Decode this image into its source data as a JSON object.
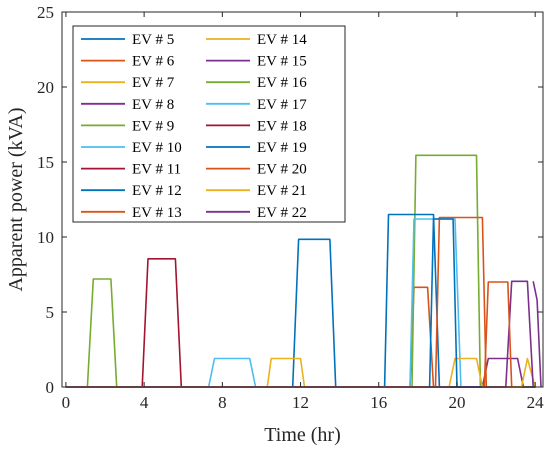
{
  "chart_data": {
    "type": "line",
    "xlabel": "Time (hr)",
    "ylabel": "Apparent power (kVA)",
    "xlim": [
      -0.2,
      24.4
    ],
    "ylim": [
      0,
      25
    ],
    "x_ticks": [
      0,
      4,
      8,
      12,
      16,
      20,
      24
    ],
    "y_ticks": [
      0,
      5,
      10,
      15,
      20,
      25
    ],
    "grid": false,
    "legend_placement": "top-left",
    "series": [
      {
        "name": "EV # 5",
        "color": "#0072BD",
        "x": [
          0,
          24
        ],
        "y": [
          0,
          0
        ]
      },
      {
        "name": "EV # 6",
        "color": "#D95319",
        "x": [
          0,
          24
        ],
        "y": [
          0,
          0
        ]
      },
      {
        "name": "EV # 7",
        "color": "#EDB120",
        "x": [
          0,
          24
        ],
        "y": [
          0,
          0
        ]
      },
      {
        "name": "EV # 8",
        "color": "#7E2F8E",
        "x": [
          0,
          24
        ],
        "y": [
          0,
          0
        ]
      },
      {
        "name": "EV # 9",
        "color": "#77AC30",
        "x": [
          0,
          1.1,
          1.4,
          2.3,
          2.6,
          24
        ],
        "y": [
          0,
          0,
          7.2,
          7.2,
          0,
          0
        ]
      },
      {
        "name": "EV # 10",
        "color": "#4DBEEE",
        "x": [
          0,
          7.3,
          7.6,
          9.4,
          9.7,
          24
        ],
        "y": [
          0,
          0,
          1.9,
          1.9,
          0,
          0
        ]
      },
      {
        "name": "EV # 11",
        "color": "#A2142F",
        "x": [
          0,
          3.9,
          4.2,
          5.6,
          5.9,
          24
        ],
        "y": [
          0,
          0,
          8.55,
          8.55,
          0,
          0
        ]
      },
      {
        "name": "EV # 12",
        "color": "#0072BD",
        "x": [
          0,
          11.6,
          11.9,
          13.5,
          13.8,
          24
        ],
        "y": [
          0,
          0,
          9.85,
          9.85,
          0,
          0
        ]
      },
      {
        "name": "EV # 13",
        "color": "#D95319",
        "x": [
          0,
          17.6,
          17.8,
          18.5,
          18.8,
          24
        ],
        "y": [
          0,
          0,
          6.65,
          6.65,
          0,
          0
        ]
      },
      {
        "name": "EV # 14",
        "color": "#EDB120",
        "x": [
          0,
          10.3,
          10.5,
          12,
          12.2,
          24
        ],
        "y": [
          0,
          0,
          1.9,
          1.9,
          0,
          0
        ]
      },
      {
        "name": "EV # 15",
        "color": "#7E2F8E",
        "x": [
          0,
          21.3,
          21.6,
          23.1,
          23.4,
          24
        ],
        "y": [
          0,
          0,
          1.9,
          1.9,
          0,
          0
        ]
      },
      {
        "name": "EV # 16",
        "color": "#77AC30",
        "x": [
          0,
          17.7,
          17.9,
          21,
          21.2,
          24
        ],
        "y": [
          0,
          0,
          15.45,
          15.45,
          0,
          0
        ]
      },
      {
        "name": "EV # 17",
        "color": "#4DBEEE",
        "x": [
          0,
          17.6,
          17.8,
          19.9,
          20.2,
          24
        ],
        "y": [
          0,
          0,
          11.2,
          11.2,
          0,
          0
        ]
      },
      {
        "name": "EV # 18",
        "color": "#A2142F",
        "x": [
          0,
          24
        ],
        "y": [
          0,
          0
        ]
      },
      {
        "name": "EV # 19",
        "color": "#0072BD",
        "x": [
          0,
          16.3,
          16.5,
          18.8,
          19.1,
          24
        ],
        "y": [
          0,
          0,
          11.5,
          11.5,
          0,
          0
        ]
      },
      {
        "name": "EV # 20",
        "color": "#D95319",
        "x": [
          0,
          18.9,
          19.1,
          21.3,
          21.5,
          24
        ],
        "y": [
          0,
          0,
          11.3,
          11.3,
          0,
          0
        ]
      },
      {
        "name": "EV # 21",
        "color": "#EDB120",
        "x": [
          0,
          19.6,
          19.9,
          21,
          21.3,
          23.3,
          23.6,
          24
        ],
        "y": [
          0,
          0,
          1.9,
          1.9,
          0,
          0,
          1.9,
          0
        ]
      },
      {
        "name": "EV # 22",
        "color": "#7E2F8E",
        "x": [
          0,
          22.5,
          22.8,
          23.6,
          23.9,
          24
        ],
        "y": [
          0,
          0,
          7.05,
          7.05,
          0,
          0
        ]
      }
    ],
    "extra_traces": [
      {
        "color": "#D95319",
        "x": [
          19.1,
          19.1
        ],
        "y": [
          0,
          0
        ]
      },
      {
        "color": "#D95319",
        "x": [
          21.4,
          21.6,
          22.6,
          22.8
        ],
        "y": [
          0,
          7.0,
          7.0,
          0
        ]
      },
      {
        "color": "#0072BD",
        "x": [
          18.6,
          18.8,
          19.8,
          20.0
        ],
        "y": [
          0,
          11.2,
          11.2,
          0
        ]
      },
      {
        "color": "#7E2F8E",
        "x": [
          23.9,
          24.1,
          24.3
        ],
        "y": [
          7.05,
          5.8,
          0
        ]
      }
    ]
  }
}
